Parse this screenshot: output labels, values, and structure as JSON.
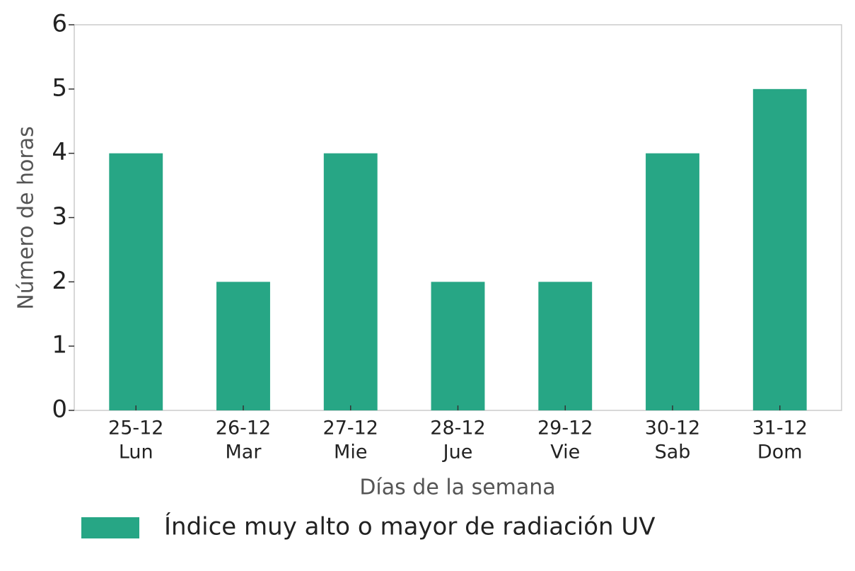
{
  "chart_data": {
    "type": "bar",
    "x_label": "Días de la semana",
    "y_label": "Número de horas",
    "categories": [
      [
        "25-12",
        "Lun"
      ],
      [
        "26-12",
        "Mar"
      ],
      [
        "27-12",
        "Mie"
      ],
      [
        "28-12",
        "Jue"
      ],
      [
        "29-12",
        "Vie"
      ],
      [
        "30-12",
        "Sab"
      ],
      [
        "31-12",
        "Dom"
      ]
    ],
    "series": [
      {
        "name": "Índice muy alto o mayor de radiación UV",
        "color": "#27a685",
        "values": [
          4,
          2,
          4,
          2,
          2,
          4,
          5
        ]
      }
    ],
    "ylim": [
      0,
      6
    ],
    "yticks": [
      0,
      1,
      2,
      3,
      4,
      5,
      6
    ],
    "grid": false,
    "legend": "bottom"
  }
}
